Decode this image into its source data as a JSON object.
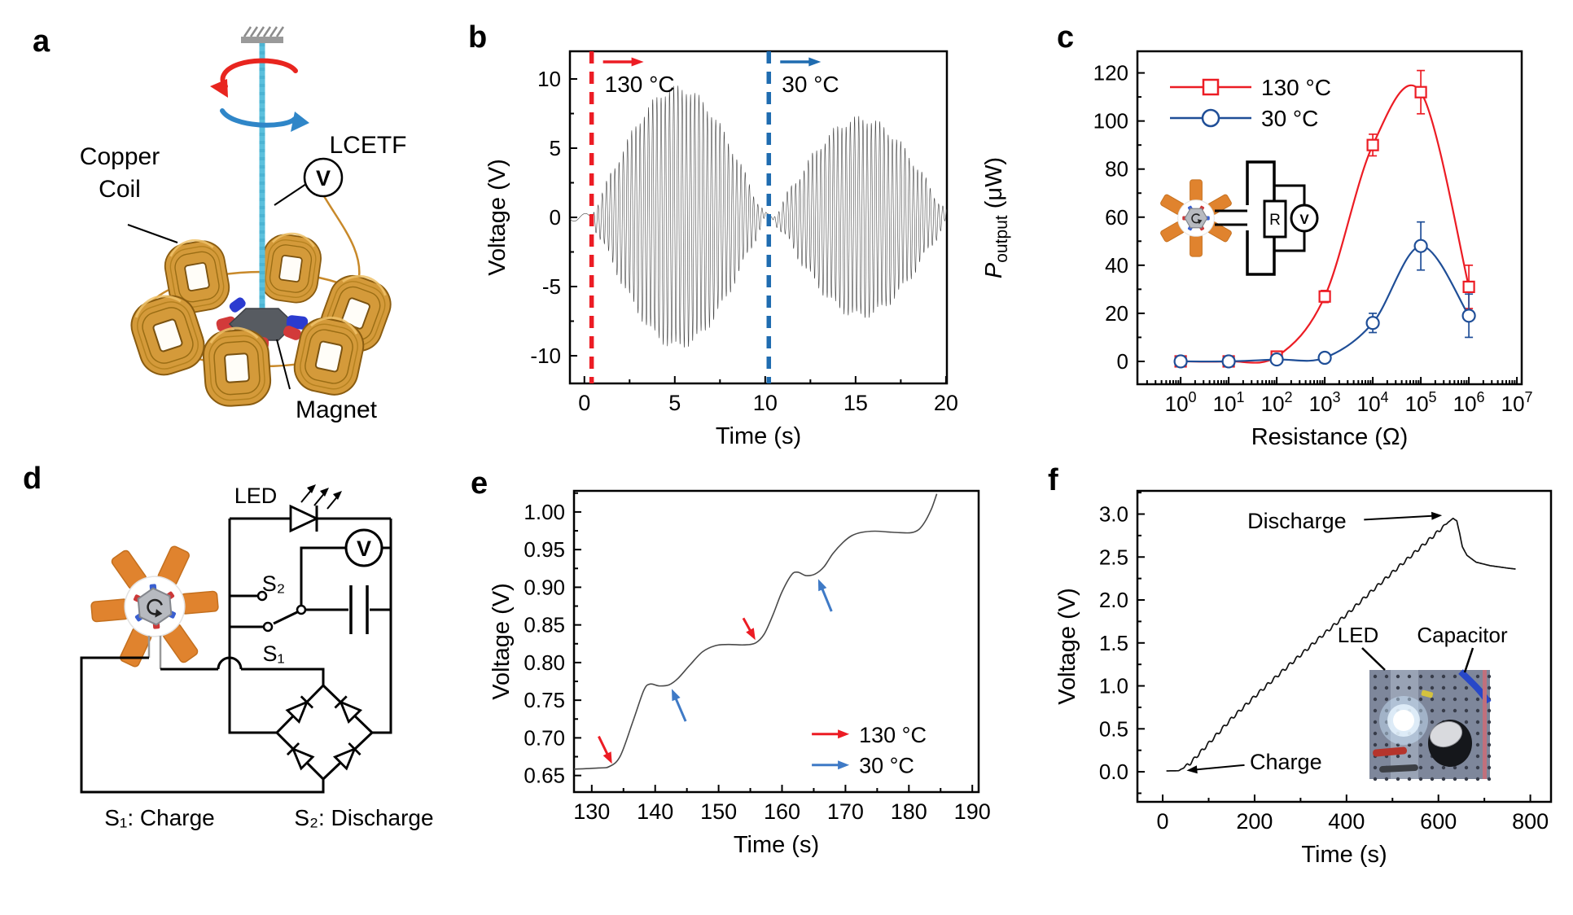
{
  "figure": {
    "panel_letters": [
      "a",
      "b",
      "c",
      "d",
      "e",
      "f"
    ],
    "colors": {
      "hot_red": "#ec1c24",
      "cold_blue_line": "#1f6cb0",
      "cold_blue_dark": "#1f4e97",
      "cold_blue_text": "#3f7ac6",
      "blade_orange": "#e0832e",
      "copper_wire": "#c8892a",
      "fiber_blue": "#5bc0dd",
      "coil_gold": "#d49a3a"
    }
  },
  "panel_a": {
    "labels": {
      "copper_coil": [
        "Copper",
        "Coil"
      ],
      "lcetf": "LCETF",
      "magnet": "Magnet",
      "voltmeter": "V"
    }
  },
  "panel_d": {
    "labels": {
      "led": "LED",
      "s2": "S₂",
      "s1": "S₁",
      "voltmeter": "V",
      "s1_caption": "S₁: Charge",
      "s2_caption": "S₂: Discharge"
    }
  },
  "chart_data": [
    {
      "id": "b",
      "type": "line",
      "title": "",
      "xlabel": "Time (s)",
      "ylabel": "Voltage (V)",
      "xlim": [
        -0.8,
        20.05
      ],
      "ylim": [
        -12,
        12
      ],
      "xticks": [
        0,
        5,
        10,
        15,
        20
      ],
      "xticklabels": [
        "0",
        "5",
        "10",
        "15",
        "20"
      ],
      "xminor_step": 2.5,
      "yticks": [
        -10,
        -5,
        0,
        5,
        10
      ],
      "yticklabels": [
        "-10",
        "-5",
        "0",
        "5",
        "10"
      ],
      "yminor_step": 2.5,
      "grid": false,
      "waveform": {
        "description": "two oscillation bursts of induced AC voltage",
        "carrier_hz": 4.3,
        "baseline_ripple_V": 0.28,
        "baseline_ripple_hz": 0.8,
        "envelopes": [
          {
            "t_start": 0.25,
            "t_peak": 5.4,
            "t_end": 10.1,
            "peak_V": 9.3
          },
          {
            "t_start": 10.35,
            "t_peak": 14.9,
            "t_end": 20.25,
            "peak_V": 7.1
          }
        ]
      },
      "vlines": [
        {
          "x": 0.4,
          "color": "#ec1c24",
          "label": "130 °C",
          "label_color": "#ec1c24"
        },
        {
          "x": 10.2,
          "color": "#1f6cb0",
          "label": "30 °C",
          "label_color": "#3f7ac6"
        }
      ]
    },
    {
      "id": "c",
      "type": "line-scatter",
      "xscale": "log",
      "xlabel": "Resistance (Ω)",
      "ylabel_parts": {
        "var": "P",
        "sub": "output",
        "rest": " (μW)"
      },
      "xlim_exp": [
        -0.9,
        7.1
      ],
      "ylim": [
        -9.5,
        129
      ],
      "xtick_exponents": [
        0,
        1,
        2,
        3,
        4,
        5,
        6,
        7
      ],
      "yticks": [
        0,
        20,
        40,
        60,
        80,
        100,
        120
      ],
      "yticklabels": [
        "0",
        "20",
        "40",
        "60",
        "80",
        "100",
        "120"
      ],
      "yminor_step": 10,
      "series": [
        {
          "name": "130 °C",
          "color": "#ec1c24",
          "label_color": "#ec1c24",
          "marker": "square",
          "x": [
            1,
            10,
            100,
            1000,
            10000,
            100000,
            1000000
          ],
          "y": [
            0,
            0,
            2,
            27,
            90,
            112,
            31
          ],
          "yerr": [
            1,
            1,
            1.5,
            2.5,
            4.5,
            9,
            9
          ]
        },
        {
          "name": "30 °C",
          "color": "#1f4e97",
          "label_color": "#3f7ac6",
          "marker": "circle",
          "x": [
            1,
            10,
            100,
            1000,
            10000,
            100000,
            1000000
          ],
          "y": [
            0,
            0,
            0.8,
            1.5,
            16,
            48,
            19
          ],
          "yerr": [
            2,
            2,
            1,
            1.5,
            4,
            10,
            9
          ]
        }
      ],
      "inset_labels": {
        "resistor": "R",
        "voltmeter": "V"
      }
    },
    {
      "id": "e",
      "type": "line",
      "xlabel": "Time (s)",
      "ylabel": "Voltage (V)",
      "xlim": [
        127.2,
        191
      ],
      "ylim": [
        0.628,
        1.028
      ],
      "xticks": [
        130,
        140,
        150,
        160,
        170,
        180,
        190
      ],
      "xticklabels": [
        "130",
        "140",
        "150",
        "160",
        "170",
        "180",
        "190"
      ],
      "xminor_step": 5,
      "yticks": [
        0.65,
        0.7,
        0.75,
        0.8,
        0.85,
        0.9,
        0.95,
        1.0
      ],
      "yticklabels": [
        "0.65",
        "0.70",
        "0.75",
        "0.80",
        "0.85",
        "0.90",
        "0.95",
        "1.00"
      ],
      "yminor_step": 0.025,
      "points": [
        [
          127.2,
          0.6585
        ],
        [
          131,
          0.66
        ],
        [
          132.8,
          0.662
        ],
        [
          134.5,
          0.676
        ],
        [
          136.5,
          0.722
        ],
        [
          138.2,
          0.763
        ],
        [
          139.2,
          0.7715
        ],
        [
          140.6,
          0.769
        ],
        [
          142.2,
          0.7705
        ],
        [
          143.6,
          0.779
        ],
        [
          145.5,
          0.797
        ],
        [
          147.5,
          0.8145
        ],
        [
          149.5,
          0.8225
        ],
        [
          151.5,
          0.824
        ],
        [
          154,
          0.8235
        ],
        [
          155.8,
          0.826
        ],
        [
          157.2,
          0.838
        ],
        [
          158.6,
          0.864
        ],
        [
          160,
          0.894
        ],
        [
          161.5,
          0.9165
        ],
        [
          162.5,
          0.92
        ],
        [
          163.8,
          0.9155
        ],
        [
          165.2,
          0.9175
        ],
        [
          166.6,
          0.927
        ],
        [
          168,
          0.9445
        ],
        [
          169.6,
          0.9595
        ],
        [
          171,
          0.9685
        ],
        [
          172.6,
          0.973
        ],
        [
          174.6,
          0.9745
        ],
        [
          176.6,
          0.9735
        ],
        [
          178.6,
          0.9725
        ],
        [
          180.4,
          0.9725
        ],
        [
          181.6,
          0.977
        ],
        [
          182.6,
          0.988
        ],
        [
          183.6,
          1.005
        ],
        [
          184.4,
          1.024
        ]
      ],
      "arrows": [
        {
          "from": [
            131.1,
            0.702
          ],
          "to": [
            133.2,
            0.6655
          ],
          "color": "#ec1c24"
        },
        {
          "from": [
            144.8,
            0.722
          ],
          "to": [
            142.6,
            0.765
          ],
          "color": "#3f7ac6"
        },
        {
          "from": [
            153.9,
            0.859
          ],
          "to": [
            155.8,
            0.83
          ],
          "color": "#ec1c24"
        },
        {
          "from": [
            167.8,
            0.868
          ],
          "to": [
            165.7,
            0.911
          ],
          "color": "#3f7ac6"
        }
      ],
      "legend": [
        {
          "label": "130 °C",
          "color": "#ec1c24",
          "pos": [
            172.4,
            0.705
          ]
        },
        {
          "label": "30 °C",
          "color": "#3f7ac6",
          "pos": [
            172.4,
            0.664
          ]
        }
      ]
    },
    {
      "id": "f",
      "type": "line",
      "xlabel": "Time (s)",
      "ylabel": "Voltage (V)",
      "xlim": [
        -55,
        845
      ],
      "ylim": [
        -0.35,
        3.27
      ],
      "xticks": [
        0,
        200,
        400,
        600,
        800
      ],
      "xticklabels": [
        "0",
        "200",
        "400",
        "600",
        "800"
      ],
      "xminor_step": 100,
      "yticks": [
        0,
        0.5,
        1.0,
        1.5,
        2.0,
        2.5,
        3.0
      ],
      "yticklabels": [
        "0.0",
        "0.5",
        "1.0",
        "1.5",
        "2.0",
        "2.5",
        "3.0"
      ],
      "yminor_step": 0.25,
      "points": [
        [
          8,
          0.01
        ],
        [
          35,
          0.012
        ],
        [
          60,
          0.1
        ],
        [
          100,
          0.33
        ],
        [
          150,
          0.62
        ],
        [
          200,
          0.875
        ],
        [
          250,
          1.12
        ],
        [
          300,
          1.36
        ],
        [
          350,
          1.6
        ],
        [
          400,
          1.83
        ],
        [
          450,
          2.08
        ],
        [
          500,
          2.32
        ],
        [
          550,
          2.56
        ],
        [
          590,
          2.75
        ],
        [
          620,
          2.9
        ],
        [
          632,
          2.95
        ],
        [
          640,
          2.92
        ],
        [
          646,
          2.78
        ],
        [
          652,
          2.62
        ],
        [
          662,
          2.52
        ],
        [
          682,
          2.44
        ],
        [
          712,
          2.4
        ],
        [
          752,
          2.37
        ],
        [
          768,
          2.36
        ]
      ],
      "ripple": {
        "amplitude_V": 0.02,
        "period_s": 16,
        "t_start": 40,
        "t_end": 622
      },
      "annotations": [
        {
          "text": "Discharge",
          "pos": [
            292,
            2.92
          ],
          "arrow_from": [
            438,
            2.935
          ],
          "arrow_to": [
            608,
            2.985
          ]
        },
        {
          "text": "Charge",
          "pos": [
            268,
            0.112
          ],
          "arrow_from": [
            178,
            0.078
          ],
          "arrow_to": [
            52,
            0.015
          ]
        }
      ],
      "inset_labels": [
        "LED",
        "Capacitor"
      ]
    }
  ]
}
